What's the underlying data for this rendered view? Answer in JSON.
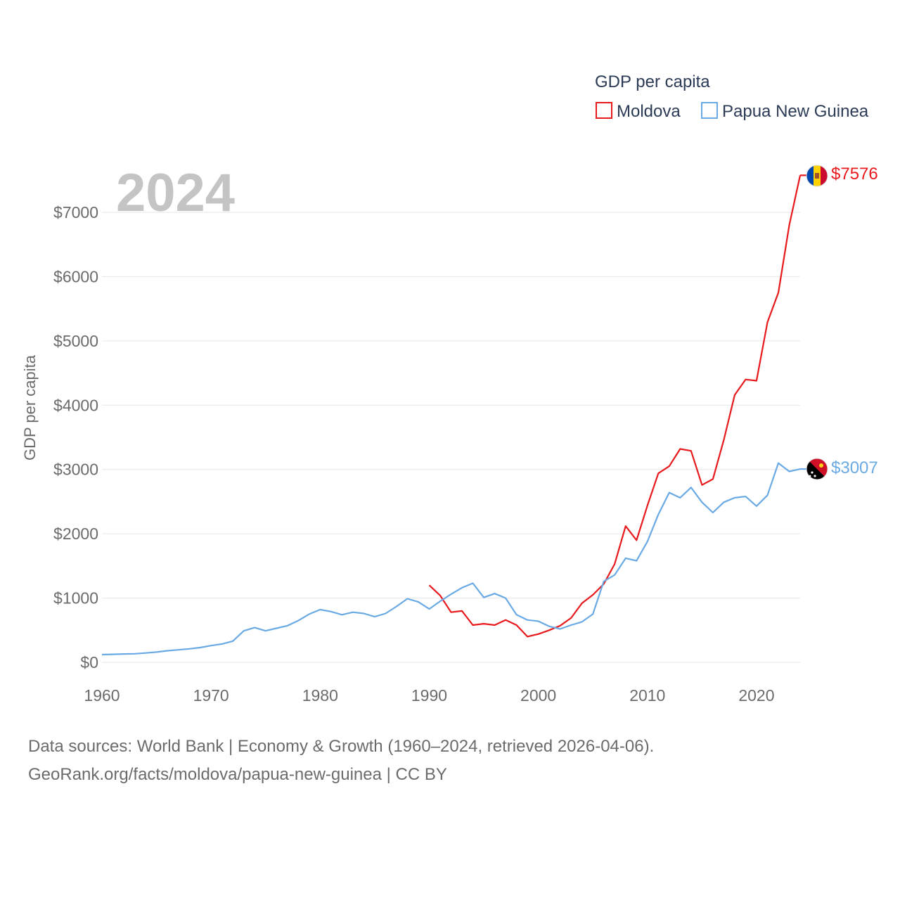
{
  "chart_data": {
    "type": "line",
    "year_display": "2024",
    "ylabel": "GDP per capita",
    "xlim": [
      1960,
      2024
    ],
    "ylim": [
      0,
      7700
    ],
    "x_ticks": [
      1960,
      1970,
      1980,
      1990,
      2000,
      2010,
      2020
    ],
    "x_tick_labels": [
      "1960",
      "1970",
      "1980",
      "1990",
      "2000",
      "2010",
      "2020"
    ],
    "y_ticks": [
      0,
      1000,
      2000,
      3000,
      4000,
      5000,
      6000,
      7000
    ],
    "y_tick_labels": [
      "$0",
      "$1000",
      "$2000",
      "$3000",
      "$4000",
      "$5000",
      "$6000",
      "$7000"
    ],
    "grid": true,
    "legend": {
      "title": "GDP per capita",
      "position": "top-right",
      "items": [
        "Moldova",
        "Papua New Guinea"
      ]
    },
    "series": [
      {
        "name": "Moldova",
        "color": "#e8191c",
        "end_label": "$7576",
        "flag": "moldova-flag",
        "x": [
          1990,
          1991,
          1992,
          1993,
          1994,
          1995,
          1996,
          1997,
          1998,
          1999,
          2000,
          2001,
          2002,
          2003,
          2004,
          2005,
          2006,
          2007,
          2008,
          2009,
          2010,
          2011,
          2012,
          2013,
          2014,
          2015,
          2016,
          2017,
          2018,
          2019,
          2020,
          2021,
          2022,
          2023,
          2024
        ],
        "values": [
          1200,
          1040,
          780,
          800,
          580,
          600,
          580,
          660,
          580,
          400,
          440,
          500,
          570,
          690,
          920,
          1050,
          1220,
          1530,
          2120,
          1900,
          2440,
          2940,
          3050,
          3320,
          3290,
          2760,
          2850,
          3460,
          4160,
          4400,
          4380,
          5290,
          5750,
          6800,
          7576
        ]
      },
      {
        "name": "Papua New Guinea",
        "color": "#6aaae4",
        "end_label": "$3007",
        "flag": "papua-new-guinea-flag",
        "x": [
          1960,
          1961,
          1962,
          1963,
          1964,
          1965,
          1966,
          1967,
          1968,
          1969,
          1970,
          1971,
          1972,
          1973,
          1974,
          1975,
          1976,
          1977,
          1978,
          1979,
          1980,
          1981,
          1982,
          1983,
          1984,
          1985,
          1986,
          1987,
          1988,
          1989,
          1990,
          1991,
          1992,
          1993,
          1994,
          1995,
          1996,
          1997,
          1998,
          1999,
          2000,
          2001,
          2002,
          2003,
          2004,
          2005,
          2006,
          2007,
          2008,
          2009,
          2010,
          2011,
          2012,
          2013,
          2014,
          2015,
          2016,
          2017,
          2018,
          2019,
          2020,
          2021,
          2022,
          2023,
          2024
        ],
        "values": [
          120,
          125,
          130,
          133,
          145,
          160,
          180,
          195,
          210,
          230,
          260,
          285,
          330,
          490,
          540,
          490,
          530,
          570,
          650,
          750,
          820,
          790,
          740,
          780,
          760,
          710,
          760,
          870,
          990,
          940,
          830,
          950,
          1060,
          1160,
          1230,
          1010,
          1070,
          1000,
          740,
          660,
          640,
          560,
          520,
          580,
          630,
          750,
          1260,
          1360,
          1620,
          1580,
          1880,
          2300,
          2640,
          2560,
          2720,
          2490,
          2330,
          2490,
          2560,
          2580,
          2430,
          2600,
          3100,
          2970,
          3007
        ]
      }
    ]
  },
  "footer": {
    "line1": "Data sources: World Bank | Economy & Growth (1960–2024, retrieved 2026-04-06).",
    "line2": "GeoRank.org/facts/moldova/papua-new-guinea | CC BY"
  }
}
